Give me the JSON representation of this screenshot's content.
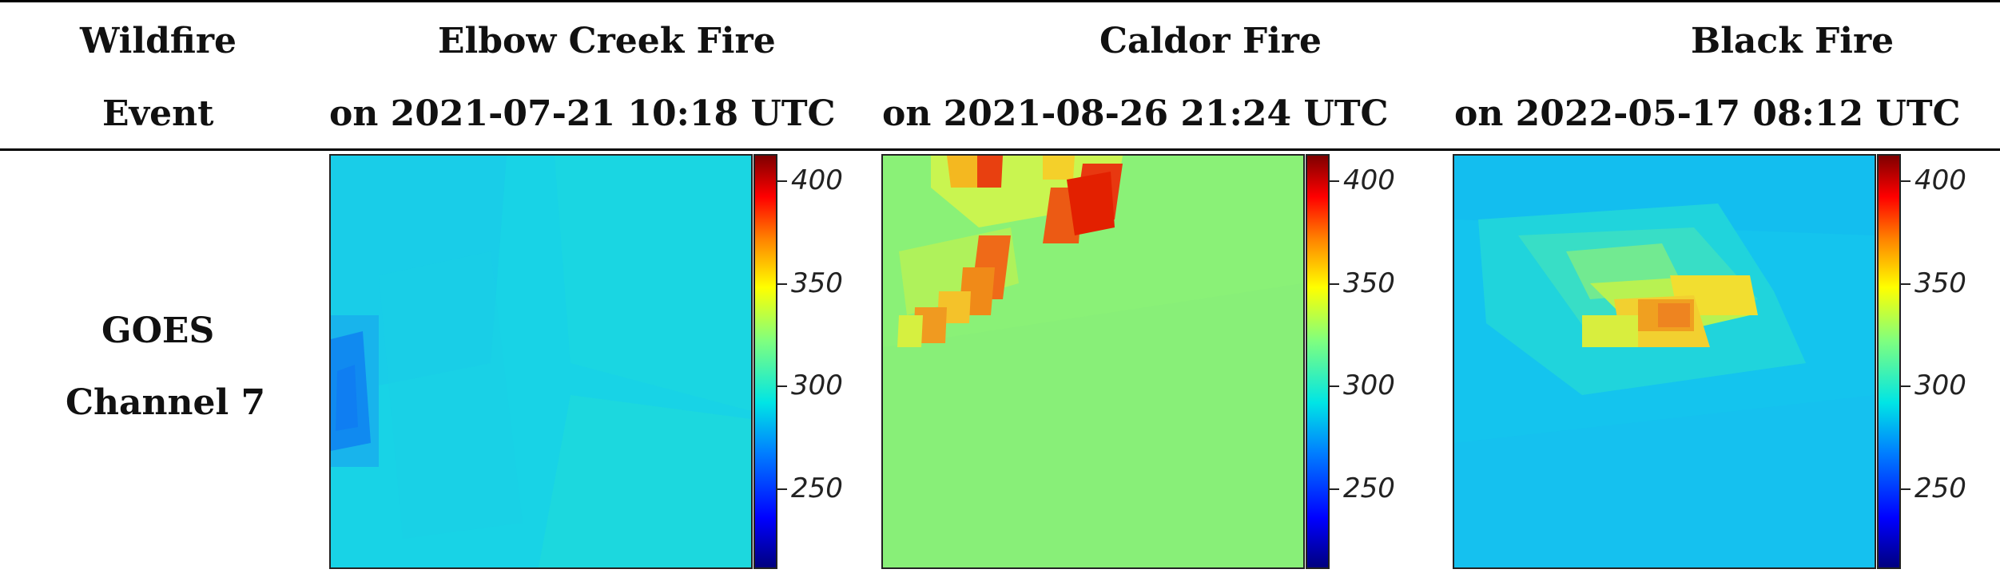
{
  "header": {
    "col0_line1": "Wildfire",
    "col0_line2": "Event",
    "columns": [
      {
        "line1": "Elbow Creek Fire",
        "line2": "on 2021-07-21 10:18 UTC"
      },
      {
        "line1": "Caldor Fire",
        "line2": "on 2021-08-26 21:24 UTC"
      },
      {
        "line1": "Black Fire",
        "line2": "on 2022-05-17 08:12 UTC"
      }
    ]
  },
  "row": {
    "label_line1": "GOES",
    "label_line2": "Channel 7"
  },
  "colorbar": {
    "ticks": [
      "400",
      "350",
      "300",
      "250"
    ]
  },
  "chart_data": [
    {
      "type": "heatmap",
      "title": "Elbow Creek Fire",
      "colorbar_ticks": [
        250,
        300,
        350,
        400
      ],
      "colormap": "jet"
    },
    {
      "type": "heatmap",
      "title": "Caldor Fire",
      "colorbar_ticks": [
        250,
        300,
        350,
        400
      ],
      "colormap": "jet"
    },
    {
      "type": "heatmap",
      "title": "Black Fire",
      "colorbar_ticks": [
        250,
        300,
        350,
        400
      ],
      "colormap": "jet"
    }
  ]
}
